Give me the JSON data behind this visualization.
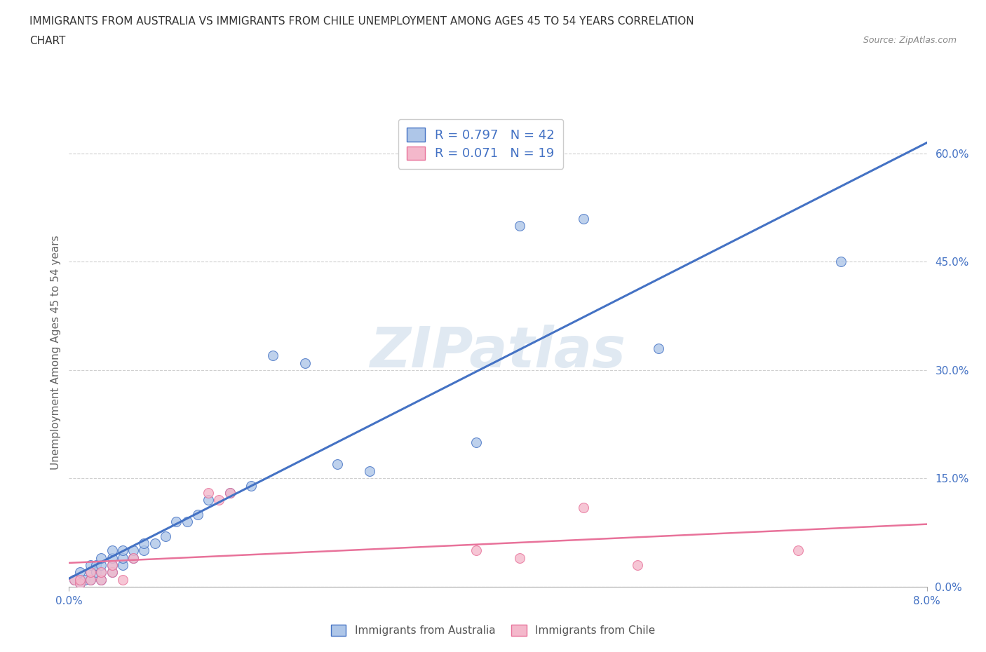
{
  "title_line1": "IMMIGRANTS FROM AUSTRALIA VS IMMIGRANTS FROM CHILE UNEMPLOYMENT AMONG AGES 45 TO 54 YEARS CORRELATION",
  "title_line2": "CHART",
  "source_text": "Source: ZipAtlas.com",
  "ylabel": "Unemployment Among Ages 45 to 54 years",
  "xlim": [
    0.0,
    0.08
  ],
  "ylim": [
    0.0,
    0.65
  ],
  "yticks": [
    0.0,
    0.15,
    0.3,
    0.45,
    0.6
  ],
  "ytick_labels": [
    "0.0%",
    "15.0%",
    "30.0%",
    "45.0%",
    "60.0%"
  ],
  "xticks": [
    0.0,
    0.08
  ],
  "xtick_labels": [
    "0.0%",
    "8.0%"
  ],
  "australia_color": "#aec6e8",
  "chile_color": "#f4b8cb",
  "australia_line_color": "#4472c4",
  "chile_line_color": "#e8729a",
  "legend_R_australia": "0.797",
  "legend_N_australia": "42",
  "legend_R_chile": "0.071",
  "legend_N_chile": "19",
  "australia_x": [
    0.0005,
    0.001,
    0.001,
    0.001,
    0.0015,
    0.002,
    0.002,
    0.002,
    0.0025,
    0.0025,
    0.003,
    0.003,
    0.003,
    0.003,
    0.004,
    0.004,
    0.004,
    0.004,
    0.005,
    0.005,
    0.005,
    0.006,
    0.006,
    0.007,
    0.007,
    0.008,
    0.009,
    0.01,
    0.011,
    0.012,
    0.013,
    0.015,
    0.017,
    0.019,
    0.022,
    0.025,
    0.028,
    0.038,
    0.042,
    0.048,
    0.055,
    0.072
  ],
  "australia_y": [
    0.01,
    0.005,
    0.01,
    0.02,
    0.01,
    0.01,
    0.02,
    0.03,
    0.02,
    0.03,
    0.01,
    0.02,
    0.03,
    0.04,
    0.02,
    0.03,
    0.04,
    0.05,
    0.03,
    0.04,
    0.05,
    0.04,
    0.05,
    0.05,
    0.06,
    0.06,
    0.07,
    0.09,
    0.09,
    0.1,
    0.12,
    0.13,
    0.14,
    0.32,
    0.31,
    0.17,
    0.16,
    0.2,
    0.5,
    0.51,
    0.33,
    0.45
  ],
  "chile_x": [
    0.0005,
    0.001,
    0.001,
    0.002,
    0.002,
    0.003,
    0.003,
    0.004,
    0.004,
    0.005,
    0.006,
    0.013,
    0.014,
    0.015,
    0.038,
    0.042,
    0.048,
    0.053,
    0.068
  ],
  "chile_y": [
    0.01,
    0.005,
    0.01,
    0.01,
    0.02,
    0.01,
    0.02,
    0.02,
    0.03,
    0.01,
    0.04,
    0.13,
    0.12,
    0.13,
    0.05,
    0.04,
    0.11,
    0.03,
    0.05
  ],
  "watermark": "ZIPatlas",
  "background_color": "#ffffff",
  "grid_color": "#d0d0d0"
}
